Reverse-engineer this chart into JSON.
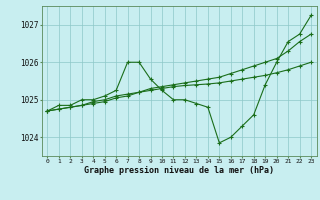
{
  "title": "Graphe pression niveau de la mer (hPa)",
  "bg_color": "#c8eef0",
  "grid_color": "#8ec8c8",
  "line_color": "#1a6e1a",
  "x_ticks": [
    0,
    1,
    2,
    3,
    4,
    5,
    6,
    7,
    8,
    9,
    10,
    11,
    12,
    13,
    14,
    15,
    16,
    17,
    18,
    19,
    20,
    21,
    22,
    23
  ],
  "ylim": [
    1023.5,
    1027.5
  ],
  "yticks": [
    1024,
    1025,
    1026,
    1027
  ],
  "series1": [
    1024.7,
    1024.85,
    1024.85,
    1025.0,
    1025.0,
    1025.1,
    1025.25,
    1026.0,
    1026.0,
    1025.55,
    1025.25,
    1025.0,
    1025.0,
    1024.9,
    1024.8,
    1023.85,
    1024.0,
    1024.3,
    1024.6,
    1025.4,
    1026.0,
    1026.55,
    1026.75,
    1027.25
  ],
  "series2": [
    1024.7,
    1024.75,
    1024.8,
    1024.85,
    1024.9,
    1024.95,
    1025.05,
    1025.1,
    1025.2,
    1025.3,
    1025.35,
    1025.4,
    1025.45,
    1025.5,
    1025.55,
    1025.6,
    1025.7,
    1025.8,
    1025.9,
    1026.0,
    1026.1,
    1026.3,
    1026.55,
    1026.75
  ],
  "series3": [
    1024.7,
    1024.75,
    1024.8,
    1024.85,
    1024.95,
    1025.0,
    1025.1,
    1025.15,
    1025.2,
    1025.25,
    1025.3,
    1025.35,
    1025.38,
    1025.4,
    1025.42,
    1025.45,
    1025.5,
    1025.55,
    1025.6,
    1025.65,
    1025.72,
    1025.8,
    1025.9,
    1026.0
  ],
  "figsize": [
    3.2,
    2.0
  ],
  "dpi": 100
}
